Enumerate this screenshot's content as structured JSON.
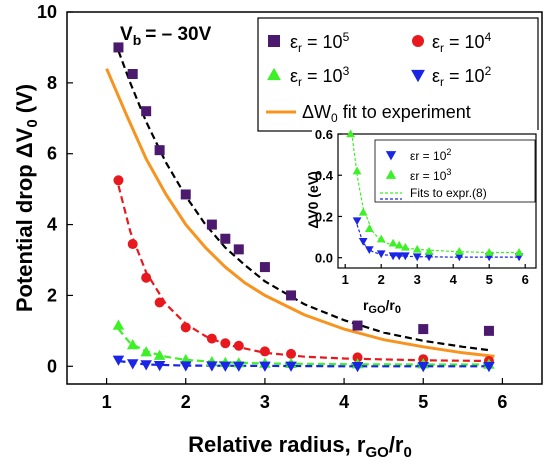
{
  "chart_data": [
    {
      "type": "scatter",
      "xlabel": "Relative radius, r",
      "xlabel_sub": "GO",
      "xlabel_tail": "/r",
      "xlabel_sub2": "0",
      "ylabel": "Potential drop ΔV",
      "ylabel_sub": "0",
      "ylabel_tail": " (V)",
      "annotation": "V",
      "annotation_sub": "b",
      "annotation_tail": "= – 30V",
      "xlim": [
        0.5,
        6.5
      ],
      "ylim": [
        -0.5,
        10
      ],
      "xticks": [
        "1",
        "2",
        "3",
        "4",
        "5",
        "6"
      ],
      "yticks": [
        "0",
        "2",
        "4",
        "6",
        "8",
        "10"
      ],
      "series": [
        {
          "name": "εr = 10^5",
          "label_main": "ε",
          "label_sub": "r",
          "label_eq": " = 10",
          "label_exp": "5",
          "marker": "square",
          "color": "#4b1a6e",
          "x": [
            1.15,
            1.33,
            1.5,
            1.67,
            2.0,
            2.33,
            2.5,
            2.67,
            3.0,
            3.33,
            4.17,
            5.0,
            5.83
          ],
          "y": [
            9.0,
            8.25,
            7.2,
            6.1,
            4.85,
            4.0,
            3.6,
            3.3,
            2.8,
            2.0,
            1.15,
            1.05,
            1.0
          ]
        },
        {
          "name": "εr = 10^4",
          "label_main": "ε",
          "label_sub": "r",
          "label_eq": " = 10",
          "label_exp": "4",
          "marker": "circle",
          "color": "#e8191e",
          "x": [
            1.15,
            1.33,
            1.5,
            1.67,
            2.0,
            2.33,
            2.5,
            2.67,
            3.0,
            3.33,
            4.17,
            5.0,
            5.83
          ],
          "y": [
            5.25,
            3.45,
            2.5,
            1.8,
            1.1,
            0.78,
            0.65,
            0.58,
            0.42,
            0.35,
            0.25,
            0.2,
            0.15
          ]
        },
        {
          "name": "εr = 10^3",
          "label_main": "ε",
          "label_sub": "r",
          "label_eq": " = 10",
          "label_exp": "3",
          "marker": "triangle-up",
          "color": "#3ef026",
          "x": [
            1.15,
            1.33,
            1.5,
            1.67,
            2.0,
            2.33,
            2.5,
            2.67,
            3.0,
            3.33,
            4.17,
            5.0,
            5.83
          ],
          "y": [
            1.15,
            0.6,
            0.4,
            0.3,
            0.18,
            0.12,
            0.1,
            0.09,
            0.08,
            0.07,
            0.06,
            0.06,
            0.05
          ]
        },
        {
          "name": "εr = 10^2",
          "label_main": "ε",
          "label_sub": "r",
          "label_eq": " = 10",
          "label_exp": "2",
          "marker": "triangle-down",
          "color": "#1a25e6",
          "x": [
            1.15,
            1.33,
            1.5,
            1.67,
            2.0,
            2.33,
            2.5,
            2.67,
            3.0,
            3.33,
            4.17,
            5.0,
            5.83
          ],
          "y": [
            0.18,
            0.08,
            0.05,
            0.03,
            0.02,
            0.02,
            0.01,
            0.01,
            0.01,
            0.01,
            0.0,
            0.0,
            0.0
          ]
        }
      ],
      "fit_series": [
        {
          "name": "ΔW0 fit to experiment",
          "label_pre": "ΔW",
          "label_sub": "0",
          "label_tail": " fit to experiment",
          "style": "solid",
          "color": "#f7931e",
          "x": [
            1.0,
            1.25,
            1.5,
            1.75,
            2.0,
            2.25,
            2.5,
            2.75,
            3.0,
            3.5,
            4.0,
            4.5,
            5.0,
            5.5,
            5.9
          ],
          "y": [
            8.4,
            7.1,
            5.85,
            4.85,
            4.0,
            3.35,
            2.8,
            2.35,
            2.0,
            1.45,
            1.05,
            0.75,
            0.55,
            0.38,
            0.28
          ]
        },
        {
          "style": "dashed",
          "color": "#000000",
          "x": [
            1.15,
            1.3,
            1.5,
            1.75,
            2.0,
            2.25,
            2.5,
            2.75,
            3.0,
            3.5,
            4.0,
            4.5,
            5.0,
            5.5,
            5.85
          ],
          "y": [
            8.9,
            8.0,
            6.9,
            5.75,
            4.8,
            4.0,
            3.35,
            2.85,
            2.4,
            1.75,
            1.3,
            0.95,
            0.72,
            0.55,
            0.45
          ]
        },
        {
          "style": "dashed",
          "color": "#e8191e",
          "x": [
            1.15,
            1.3,
            1.5,
            1.75,
            2.0,
            2.25,
            2.5,
            3.0,
            3.5,
            4.0,
            5.0,
            5.85
          ],
          "y": [
            5.1,
            3.8,
            2.65,
            1.75,
            1.2,
            0.85,
            0.62,
            0.38,
            0.27,
            0.22,
            0.17,
            0.15
          ]
        },
        {
          "style": "dashed",
          "color": "#3ef026",
          "x": [
            1.15,
            1.3,
            1.5,
            1.75,
            2.0,
            2.5,
            3.0,
            4.0,
            5.0,
            5.85
          ],
          "y": [
            1.05,
            0.65,
            0.42,
            0.27,
            0.18,
            0.11,
            0.08,
            0.06,
            0.05,
            0.05
          ]
        },
        {
          "style": "dashed",
          "color": "#1a25e6",
          "x": [
            1.15,
            1.5,
            2.0,
            3.0,
            4.0,
            5.0,
            5.85
          ],
          "y": [
            0.15,
            0.05,
            0.02,
            0.01,
            0.0,
            0.0,
            0.0
          ]
        }
      ],
      "legend_position": "top-right"
    },
    {
      "type": "scatter",
      "inset": true,
      "xlabel": "r",
      "xlabel_sub": "GO",
      "xlabel_tail": "/r",
      "xlabel_sub2": "0",
      "ylabel": "ΔV0 (eV)",
      "xlim": [
        0.8,
        6.3
      ],
      "ylim": [
        -0.05,
        0.6
      ],
      "xticks": [
        "1",
        "2",
        "3",
        "4",
        "5",
        "6"
      ],
      "yticks": [
        "0.0",
        "0.2",
        "0.4",
        "0.6"
      ],
      "series": [
        {
          "name": "εr = 10^2",
          "label": "εr = 10",
          "label_exp": "2",
          "marker": "triangle-down",
          "color": "#1a25e6",
          "x": [
            1.33,
            1.5,
            1.67,
            2.0,
            2.33,
            2.5,
            2.67,
            3.0,
            3.33,
            4.17,
            5.0,
            5.83
          ],
          "y": [
            0.18,
            0.08,
            0.04,
            0.02,
            0.01,
            0.01,
            0.01,
            0.005,
            0.005,
            0.005,
            0.005,
            0.005
          ]
        },
        {
          "name": "εr = 10^3",
          "label": "εr = 10",
          "label_exp": "3",
          "marker": "triangle-up",
          "color": "#3ef026",
          "x": [
            1.15,
            1.33,
            1.5,
            1.67,
            2.0,
            2.33,
            2.5,
            2.67,
            3.0,
            3.33,
            4.17,
            5.0,
            5.83
          ],
          "y": [
            0.6,
            0.42,
            0.22,
            0.14,
            0.09,
            0.07,
            0.06,
            0.05,
            0.04,
            0.03,
            0.03,
            0.025,
            0.025
          ]
        }
      ],
      "fit_series": [
        {
          "name": "Fits to expr.(8)",
          "style": "dashed",
          "color": "#3ef026",
          "x": [
            1.2,
            1.35,
            1.5,
            1.75,
            2.0,
            2.5,
            3.0,
            4.0,
            5.0,
            5.85
          ],
          "y": [
            0.58,
            0.38,
            0.24,
            0.13,
            0.08,
            0.05,
            0.04,
            0.03,
            0.025,
            0.025
          ]
        },
        {
          "style": "dashed",
          "color": "#1a25e6",
          "x": [
            1.33,
            1.5,
            1.75,
            2.0,
            2.5,
            3.0,
            4.0,
            5.0,
            5.85
          ],
          "y": [
            0.16,
            0.07,
            0.03,
            0.015,
            0.008,
            0.005,
            0.003,
            0.003,
            0.003
          ]
        }
      ],
      "legend_position": "top-right"
    }
  ]
}
